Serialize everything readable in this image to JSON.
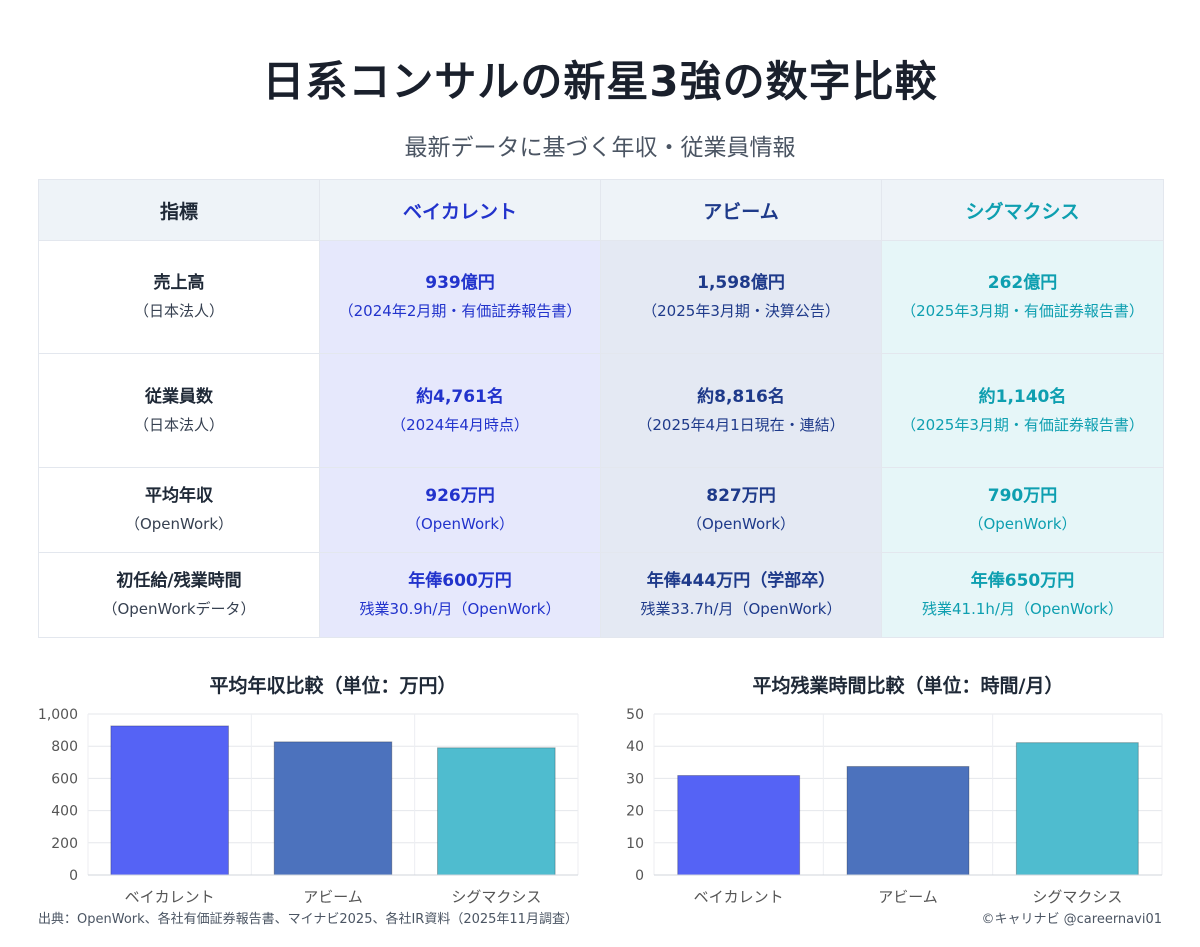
{
  "header": {
    "title": "日系コンサルの新星3強の数字比較",
    "subtitle": "最新データに基づく年収・従業員情報"
  },
  "table": {
    "columns": [
      "指標",
      "ベイカレント",
      "アビーム",
      "シグマクシス"
    ],
    "rows": [
      {
        "label": "売上高",
        "label_sub": "（日本法人）",
        "cells": [
          {
            "value": "939億円",
            "sub": "（2024年2月期・有価証券報告書）"
          },
          {
            "value": "1,598億円",
            "sub": "（2025年3月期・決算公告）"
          },
          {
            "value": "262億円",
            "sub": "（2025年3月期・有価証券報告書）"
          }
        ]
      },
      {
        "label": "従業員数",
        "label_sub": "（日本法人）",
        "cells": [
          {
            "value": "約4,761名",
            "sub": "（2024年4月時点）"
          },
          {
            "value": "約8,816名",
            "sub": "（2025年4月1日現在・連結）"
          },
          {
            "value": "約1,140名",
            "sub": "（2025年3月期・有価証券報告書）"
          }
        ]
      },
      {
        "label": "平均年収",
        "label_sub": "（OpenWork）",
        "cells": [
          {
            "value": "926万円",
            "sub": "（OpenWork）"
          },
          {
            "value": "827万円",
            "sub": "（OpenWork）"
          },
          {
            "value": "790万円",
            "sub": "（OpenWork）"
          }
        ]
      },
      {
        "label": "初任給/残業時間",
        "label_sub": "（OpenWorkデータ）",
        "cells": [
          {
            "value": "年俸600万円",
            "sub": "残業30.9h/月（OpenWork）"
          },
          {
            "value": "年俸444万円（学部卒）",
            "sub": "残業33.7h/月（OpenWork）"
          },
          {
            "value": "年俸650万円",
            "sub": "残業41.1h/月（OpenWork）"
          }
        ]
      }
    ]
  },
  "chart_data": [
    {
      "type": "bar",
      "title": "平均年収比較（単位：万円）",
      "categories": [
        "ベイカレント",
        "アビーム",
        "シグマクシス"
      ],
      "values": [
        926,
        827,
        790
      ],
      "ylim": [
        0,
        1000
      ],
      "yticks": [
        "0",
        "200",
        "400",
        "600",
        "800",
        "1,000"
      ],
      "grid": true,
      "colors": [
        "#5563f5",
        "#4c72bd",
        "#4fbccf"
      ]
    },
    {
      "type": "bar",
      "title": "平均残業時間比較（単位：時間/月）",
      "categories": [
        "ベイカレント",
        "アビーム",
        "シグマクシス"
      ],
      "values": [
        30.9,
        33.7,
        41.1
      ],
      "ylim": [
        0,
        50
      ],
      "yticks": [
        "0",
        "10",
        "20",
        "30",
        "40",
        "50"
      ],
      "grid": true,
      "colors": [
        "#5563f5",
        "#4c72bd",
        "#4fbccf"
      ]
    }
  ],
  "footer": {
    "source": "出典：OpenWork、各社有価証券報告書、マイナビ2025、各社IR資料（2025年11月調査）",
    "credit": "©キャリナビ @careernavi01"
  }
}
